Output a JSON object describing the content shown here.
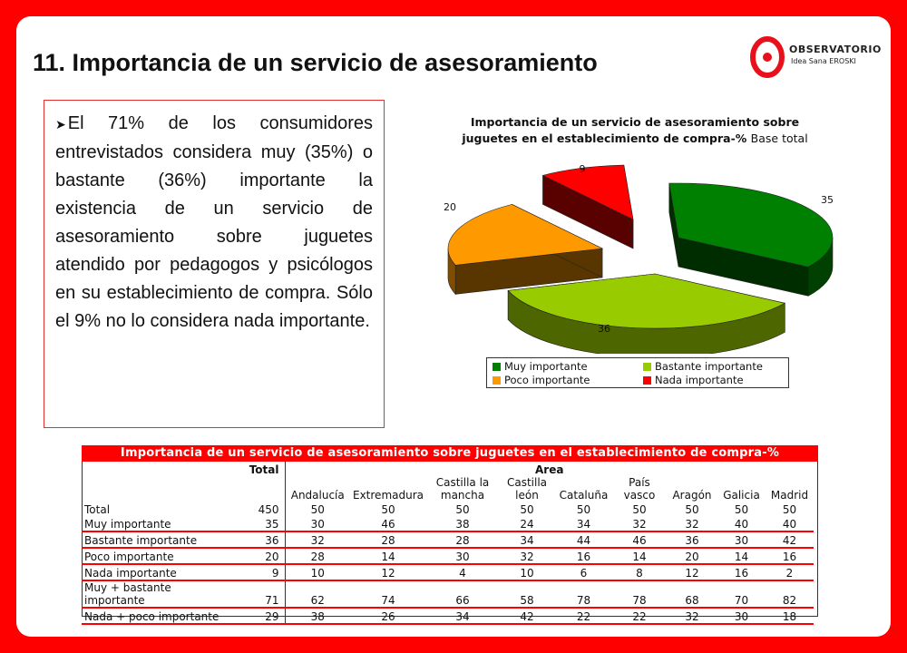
{
  "slide_title": "11. Importancia de un servicio de asesoramiento",
  "logo": {
    "word": "OBSERVATORIO",
    "sub": "Idea Sana EROSKI"
  },
  "text_block": "El 71% de los consumidores entrevistados considera muy (35%) o bastante (36%) importante la existencia de un servicio de asesoramiento sobre juguetes atendido por pedagogos y psicólogos en su establecimiento de compra. Sólo el 9% no lo considera nada importante.",
  "chart_data": {
    "type": "pie",
    "title_line1": "Importancia de un servicio de asesoramiento sobre",
    "title_line2": "juguetes en el establecimiento de compra-%",
    "title_base": "Base total",
    "categories": [
      "Muy importante",
      "Bastante importante",
      "Poco importante",
      "Nada importante"
    ],
    "values": [
      35,
      36,
      20,
      9
    ],
    "data_labels": [
      "35",
      "36",
      "20",
      "9"
    ],
    "colors": [
      "#008000",
      "#99cc00",
      "#ff9900",
      "#ff0000"
    ],
    "legend_placement": "bottom"
  },
  "table": {
    "title": "Importancia de un servicio de asesoramiento sobre juguetes en el establecimiento de compra-%",
    "total_header": "Total",
    "area_header": "Area",
    "columns": [
      "Andalucía",
      "Extremadura",
      "Castilla la mancha",
      "Castilla león",
      "Cataluña",
      "País vasco",
      "Aragón",
      "Galicia",
      "Madrid"
    ],
    "col_lines": [
      [
        "Andalucía"
      ],
      [
        "Extremadura"
      ],
      [
        "Castilla la",
        "mancha"
      ],
      [
        "Castilla",
        "león"
      ],
      [
        "Cataluña"
      ],
      [
        "País",
        "vasco"
      ],
      [
        "Aragón"
      ],
      [
        "Galicia"
      ],
      [
        "Madrid"
      ]
    ],
    "base_row": {
      "label": "Total",
      "values": [
        "450",
        "50",
        "50",
        "50",
        "50",
        "50",
        "50",
        "50",
        "50",
        "50"
      ]
    },
    "rows": [
      {
        "label": "Muy importante",
        "values": [
          "35",
          "30",
          "46",
          "38",
          "24",
          "34",
          "32",
          "32",
          "40",
          "40"
        ]
      },
      {
        "label": "Bastante importante",
        "values": [
          "36",
          "32",
          "28",
          "28",
          "34",
          "44",
          "46",
          "36",
          "30",
          "42"
        ]
      },
      {
        "label": "Poco importante",
        "values": [
          "20",
          "28",
          "14",
          "30",
          "32",
          "16",
          "14",
          "20",
          "14",
          "16"
        ]
      },
      {
        "label": "Nada importante",
        "values": [
          "9",
          "10",
          "12",
          "4",
          "10",
          "6",
          "8",
          "12",
          "16",
          "2"
        ]
      },
      {
        "label": "Muy + bastante importante",
        "values": [
          "71",
          "62",
          "74",
          "66",
          "58",
          "78",
          "78",
          "68",
          "70",
          "82"
        ]
      },
      {
        "label": "Nada + poco importante",
        "values": [
          "29",
          "38",
          "26",
          "34",
          "42",
          "22",
          "22",
          "32",
          "30",
          "18"
        ]
      }
    ]
  }
}
